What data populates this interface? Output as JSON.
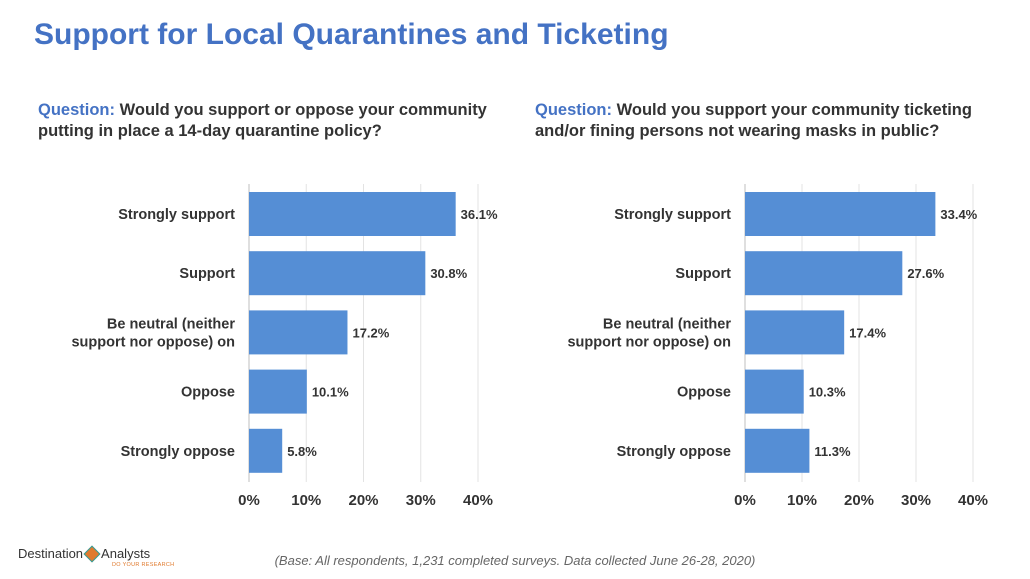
{
  "title": "Support for Local Quarantines and Ticketing",
  "questions": [
    {
      "label": "Question:",
      "text": " Would you support or oppose your community putting in place a 14-day quarantine policy?"
    },
    {
      "label": "Question:",
      "text": "  Would you support your community ticketing and/or fining persons not wearing masks in public?"
    }
  ],
  "chart_data": [
    {
      "type": "bar",
      "orientation": "horizontal",
      "categories": [
        "Strongly support",
        "Support",
        "Be neutral (neither support nor oppose) on",
        "Oppose",
        "Strongly oppose"
      ],
      "values": [
        36.1,
        30.8,
        17.2,
        10.1,
        5.8
      ],
      "data_labels": [
        "36.1%",
        "30.8%",
        "17.2%",
        "10.1%",
        "5.8%"
      ],
      "xlim": [
        0,
        40
      ],
      "x_ticks": [
        "0%",
        "10%",
        "20%",
        "30%",
        "40%"
      ],
      "grid": true,
      "bar_color": "#558ed5"
    },
    {
      "type": "bar",
      "orientation": "horizontal",
      "categories": [
        "Strongly support",
        "Support",
        "Be neutral (neither support nor oppose) on",
        "Oppose",
        "Strongly oppose"
      ],
      "values": [
        33.4,
        27.6,
        17.4,
        10.3,
        11.3
      ],
      "data_labels": [
        "33.4%",
        "27.6%",
        "17.4%",
        "10.3%",
        "11.3%"
      ],
      "xlim": [
        0,
        40
      ],
      "x_ticks": [
        "0%",
        "10%",
        "20%",
        "30%",
        "40%"
      ],
      "grid": true,
      "bar_color": "#558ed5"
    }
  ],
  "footer": "(Base: All respondents, 1,231 completed surveys. Data collected June 26-28, 2020)",
  "logo": {
    "brand_left": "Destination",
    "brand_right": "Analysts",
    "tagline": "DO YOUR RESEARCH",
    "icon": "diamond-logo-icon"
  }
}
